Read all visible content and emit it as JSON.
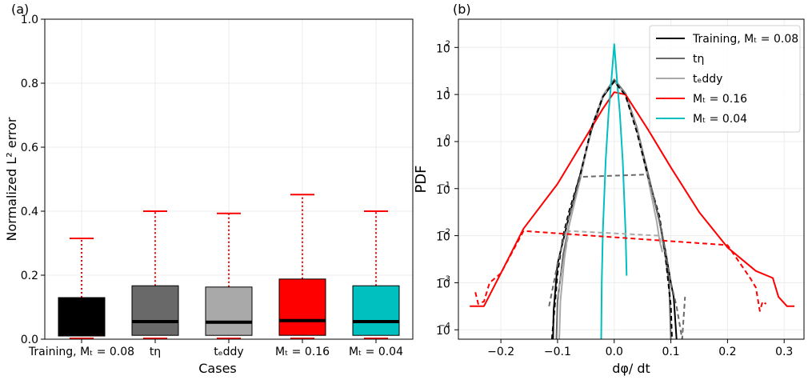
{
  "chart_data": [
    {
      "panel_label": "(a)",
      "type": "boxplot",
      "xlabel": "Cases",
      "ylabel": "Normalized L² error",
      "ylim": [
        0.0,
        1.0
      ],
      "yticks": [
        0.0,
        0.2,
        0.4,
        0.6,
        0.8,
        1.0
      ],
      "ytick_labels": [
        "0.0",
        "0.2",
        "0.4",
        "0.6",
        "0.8",
        "1.0"
      ],
      "grid": true,
      "categories": [
        {
          "label": "Training, Mₜ = 0.08",
          "color": "#000000",
          "q1": 0.01,
          "median": 0.043,
          "q3": 0.13,
          "whisker_low": 0.0,
          "whisker_high": 0.315
        },
        {
          "label": "tη",
          "color": "#696969",
          "q1": 0.012,
          "median": 0.055,
          "q3": 0.167,
          "whisker_low": 0.0,
          "whisker_high": 0.4
        },
        {
          "label": "tₑddy",
          "color": "#a9a9a9",
          "q1": 0.012,
          "median": 0.053,
          "q3": 0.163,
          "whisker_low": 0.0,
          "whisker_high": 0.393
        },
        {
          "label": "Mₜ = 0.16",
          "color": "#ff0000",
          "q1": 0.012,
          "median": 0.058,
          "q3": 0.188,
          "whisker_low": 0.0,
          "whisker_high": 0.452
        },
        {
          "label": "Mₜ = 0.04",
          "color": "#00bfbf",
          "q1": 0.012,
          "median": 0.055,
          "q3": 0.167,
          "whisker_low": 0.0,
          "whisker_high": 0.4
        }
      ]
    },
    {
      "panel_label": "(b)",
      "type": "line",
      "xlabel": "dφ/ dt",
      "ylabel": "PDF",
      "yscale": "log",
      "xlim": [
        -0.275,
        0.335
      ],
      "ylim_log10": [
        -4.2,
        2.6
      ],
      "xticks": [
        -0.2,
        -0.1,
        0.0,
        0.1,
        0.2,
        0.3
      ],
      "xtick_labels": [
        "−0.2",
        "−0.1",
        "0.0",
        "0.1",
        "0.2",
        "0.3"
      ],
      "yticks_log10": [
        -4,
        -3,
        -2,
        -1,
        0,
        1,
        2
      ],
      "ytick_labels": [
        "10",
        "10",
        "10",
        "10",
        "10",
        "10",
        "10"
      ],
      "ytick_exponents": [
        "−4",
        "−3",
        "−2",
        "−1",
        "0",
        "1",
        "2"
      ],
      "grid": true,
      "legend_position": "top-right",
      "series": [
        {
          "name": "Training, Mₜ = 0.08",
          "color": "#000000",
          "style": "solid",
          "points": [
            [
              -0.108,
              -4.2
            ],
            [
              -0.107,
              -3.6
            ],
            [
              -0.1,
              -2.6
            ],
            [
              -0.09,
              -2.1
            ],
            [
              -0.08,
              -1.6
            ],
            [
              -0.06,
              -0.7
            ],
            [
              -0.04,
              0.25
            ],
            [
              -0.02,
              0.95
            ],
            [
              0.0,
              1.28
            ],
            [
              0.02,
              1.0
            ],
            [
              0.04,
              0.25
            ],
            [
              0.06,
              -0.7
            ],
            [
              0.08,
              -1.7
            ],
            [
              0.09,
              -2.3
            ],
            [
              0.1,
              -3.0
            ],
            [
              0.105,
              -3.3
            ],
            [
              0.11,
              -4.2
            ]
          ]
        },
        {
          "name": "tη",
          "color": "#696969",
          "style": "solid",
          "points": [
            [
              -0.102,
              -4.2
            ],
            [
              -0.1,
              -3.4
            ],
            [
              -0.09,
              -2.4
            ],
            [
              -0.08,
              -1.8
            ],
            [
              -0.06,
              -0.75
            ],
            [
              -0.04,
              0.28
            ],
            [
              -0.02,
              0.98
            ],
            [
              0.0,
              1.32
            ],
            [
              0.02,
              1.02
            ],
            [
              0.04,
              0.3
            ],
            [
              0.06,
              -0.7
            ],
            [
              0.08,
              -1.7
            ],
            [
              0.09,
              -2.4
            ],
            [
              0.097,
              -3.0
            ],
            [
              0.1,
              -4.2
            ]
          ]
        },
        {
          "name": "tₑddy",
          "color": "#a9a9a9",
          "style": "solid",
          "points": [
            [
              -0.097,
              -4.2
            ],
            [
              -0.095,
              -3.4
            ],
            [
              -0.088,
              -2.5
            ],
            [
              -0.08,
              -1.8
            ],
            [
              -0.06,
              -0.8
            ],
            [
              -0.04,
              0.3
            ],
            [
              -0.02,
              0.98
            ],
            [
              0.0,
              1.28
            ],
            [
              0.02,
              1.0
            ],
            [
              0.04,
              0.25
            ],
            [
              0.06,
              -0.8
            ],
            [
              0.075,
              -1.7
            ],
            [
              0.08,
              -2.1
            ],
            [
              0.085,
              -2.35
            ]
          ]
        },
        {
          "name": "Mₜ = 0.16",
          "color": "#ff0000",
          "style": "solid",
          "points": [
            [
              -0.255,
              -3.5
            ],
            [
              -0.23,
              -3.5
            ],
            [
              -0.2,
              -2.8
            ],
            [
              -0.16,
              -1.85
            ],
            [
              -0.1,
              -0.9
            ],
            [
              -0.06,
              -0.1
            ],
            [
              -0.02,
              0.7
            ],
            [
              0.0,
              1.05
            ],
            [
              0.02,
              1.0
            ],
            [
              0.06,
              0.25
            ],
            [
              0.1,
              -0.55
            ],
            [
              0.15,
              -1.5
            ],
            [
              0.2,
              -2.25
            ],
            [
              0.25,
              -2.75
            ],
            [
              0.28,
              -2.9
            ],
            [
              0.29,
              -3.3
            ],
            [
              0.305,
              -3.5
            ],
            [
              0.318,
              -3.5
            ]
          ]
        },
        {
          "name": "Mₜ = 0.04",
          "color": "#00bfbf",
          "style": "solid",
          "points": [
            [
              -0.023,
              -4.2
            ],
            [
              -0.022,
              -3.0
            ],
            [
              -0.02,
              -1.9
            ],
            [
              -0.015,
              -0.4
            ],
            [
              -0.01,
              0.6
            ],
            [
              -0.005,
              1.3
            ],
            [
              0.0,
              2.07
            ],
            [
              0.005,
              1.3
            ],
            [
              0.01,
              0.6
            ],
            [
              0.015,
              -0.4
            ],
            [
              0.02,
              -1.9
            ],
            [
              0.022,
              -2.85
            ]
          ]
        },
        {
          "name": "",
          "color": "#000000",
          "style": "dashed",
          "points": [
            [
              -0.11,
              -4.2
            ],
            [
              -0.105,
              -3.5
            ],
            [
              -0.1,
              -2.8
            ],
            [
              -0.09,
              -2.0
            ],
            [
              -0.08,
              -1.5
            ],
            [
              -0.06,
              -0.7
            ],
            [
              -0.04,
              0.3
            ],
            [
              -0.02,
              0.95
            ],
            [
              0.0,
              1.28
            ],
            [
              0.02,
              0.98
            ],
            [
              0.04,
              0.2
            ],
            [
              0.06,
              -0.75
            ],
            [
              0.08,
              -1.6
            ],
            [
              0.09,
              -2.4
            ],
            [
              0.1,
              -3.5
            ],
            [
              0.102,
              -4.2
            ]
          ]
        },
        {
          "name": "",
          "color": "#696969",
          "style": "dashed",
          "points": [
            [
              -0.115,
              -3.5
            ],
            [
              -0.11,
              -3.2
            ],
            [
              -0.1,
              -2.6
            ],
            [
              -0.09,
              -2.1
            ],
            [
              -0.08,
              -1.6
            ],
            [
              -0.06,
              -0.75
            ],
            [
              0.06,
              -0.7
            ],
            [
              0.08,
              -1.7
            ],
            [
              0.09,
              -2.3
            ],
            [
              0.1,
              -3.0
            ],
            [
              0.11,
              -3.5
            ],
            [
              0.12,
              -4.2
            ],
            [
              0.125,
              -3.3
            ]
          ]
        },
        {
          "name": "",
          "color": "#a9a9a9",
          "style": "dashed",
          "points": [
            [
              -0.1,
              -3.3
            ],
            [
              -0.09,
              -2.6
            ],
            [
              -0.08,
              -1.9
            ],
            [
              0.08,
              -2.0
            ],
            [
              0.085,
              -2.35
            ]
          ]
        },
        {
          "name": "",
          "color": "#ff0000",
          "style": "dashed",
          "points": [
            [
              -0.245,
              -3.2
            ],
            [
              -0.24,
              -3.45
            ],
            [
              -0.23,
              -3.4
            ],
            [
              -0.22,
              -3.0
            ],
            [
              -0.2,
              -2.8
            ],
            [
              -0.16,
              -1.9
            ],
            [
              0.2,
              -2.2
            ],
            [
              0.24,
              -2.9
            ],
            [
              0.25,
              -3.1
            ],
            [
              0.257,
              -3.6
            ],
            [
              0.262,
              -3.4
            ],
            [
              0.268,
              -3.45
            ]
          ]
        }
      ]
    }
  ]
}
